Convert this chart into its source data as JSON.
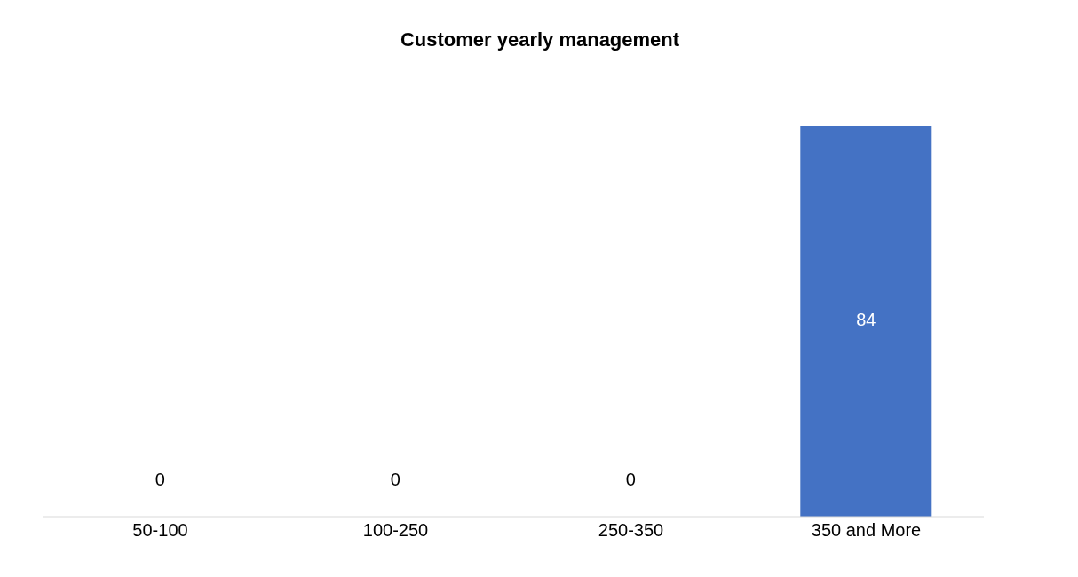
{
  "chart_data": {
    "type": "bar",
    "title": "Customer yearly management",
    "categories": [
      "50-100",
      "100-250",
      "250-350",
      "350 and More"
    ],
    "values": [
      0,
      0,
      0,
      84
    ],
    "color": "#4472c4",
    "data_labels": true
  }
}
